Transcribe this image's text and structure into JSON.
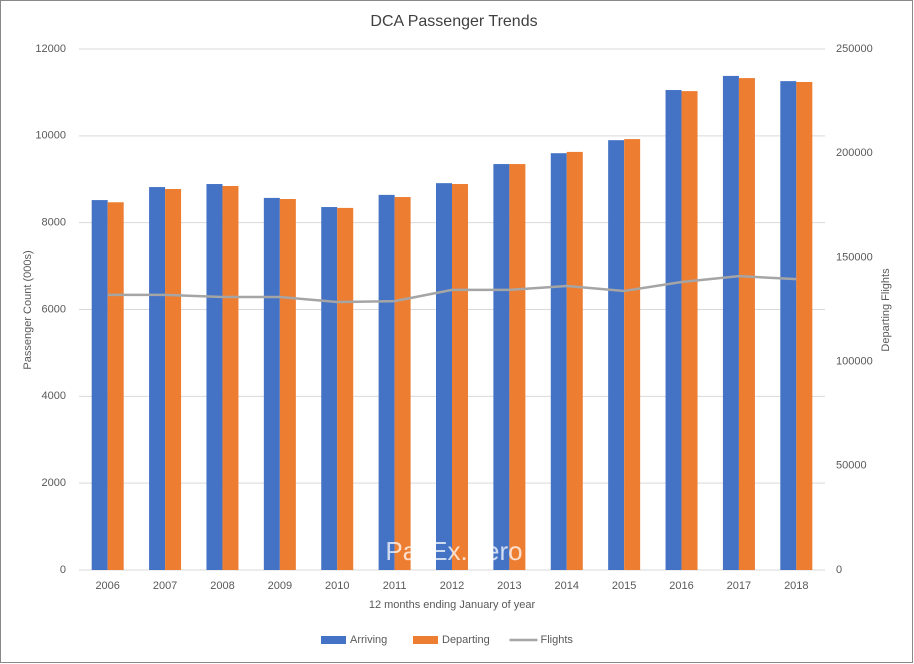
{
  "chart_data": {
    "type": "bar",
    "title": "DCA Passenger Trends",
    "x_label": "12 months ending January of year",
    "y_label": "Passenger Count (000s)",
    "y2_label": "Departing Flights",
    "watermark": "PaxEx.Aero",
    "categories": [
      "2006",
      "2007",
      "2008",
      "2009",
      "2010",
      "2011",
      "2012",
      "2013",
      "2014",
      "2015",
      "2016",
      "2017",
      "2018"
    ],
    "series": [
      {
        "name": "Arriving",
        "type": "bar",
        "color": "#4472c4",
        "values": [
          8520,
          8820,
          8890,
          8570,
          8360,
          8640,
          8910,
          9350,
          9600,
          9900,
          11055,
          11380,
          11260
        ]
      },
      {
        "name": "Departing",
        "type": "bar",
        "color": "#ed7d31",
        "values": [
          8470,
          8775,
          8845,
          8545,
          8340,
          8590,
          8890,
          9350,
          9630,
          9925,
          11030,
          11330,
          11240
        ]
      },
      {
        "name": "Flights",
        "type": "line",
        "axis": "y2",
        "color": "#a5a5a5",
        "values": [
          132000,
          132000,
          131000,
          131000,
          128600,
          129000,
          134400,
          134400,
          136300,
          133900,
          138200,
          141000,
          139600
        ]
      }
    ],
    "ylim": [
      0,
      12000
    ],
    "yticks": [
      0,
      2000,
      4000,
      6000,
      8000,
      10000,
      12000
    ],
    "y2lim": [
      0,
      250000
    ],
    "y2ticks": [
      0,
      50000,
      100000,
      150000,
      200000,
      250000
    ],
    "grid": true,
    "legend": "bottom"
  }
}
